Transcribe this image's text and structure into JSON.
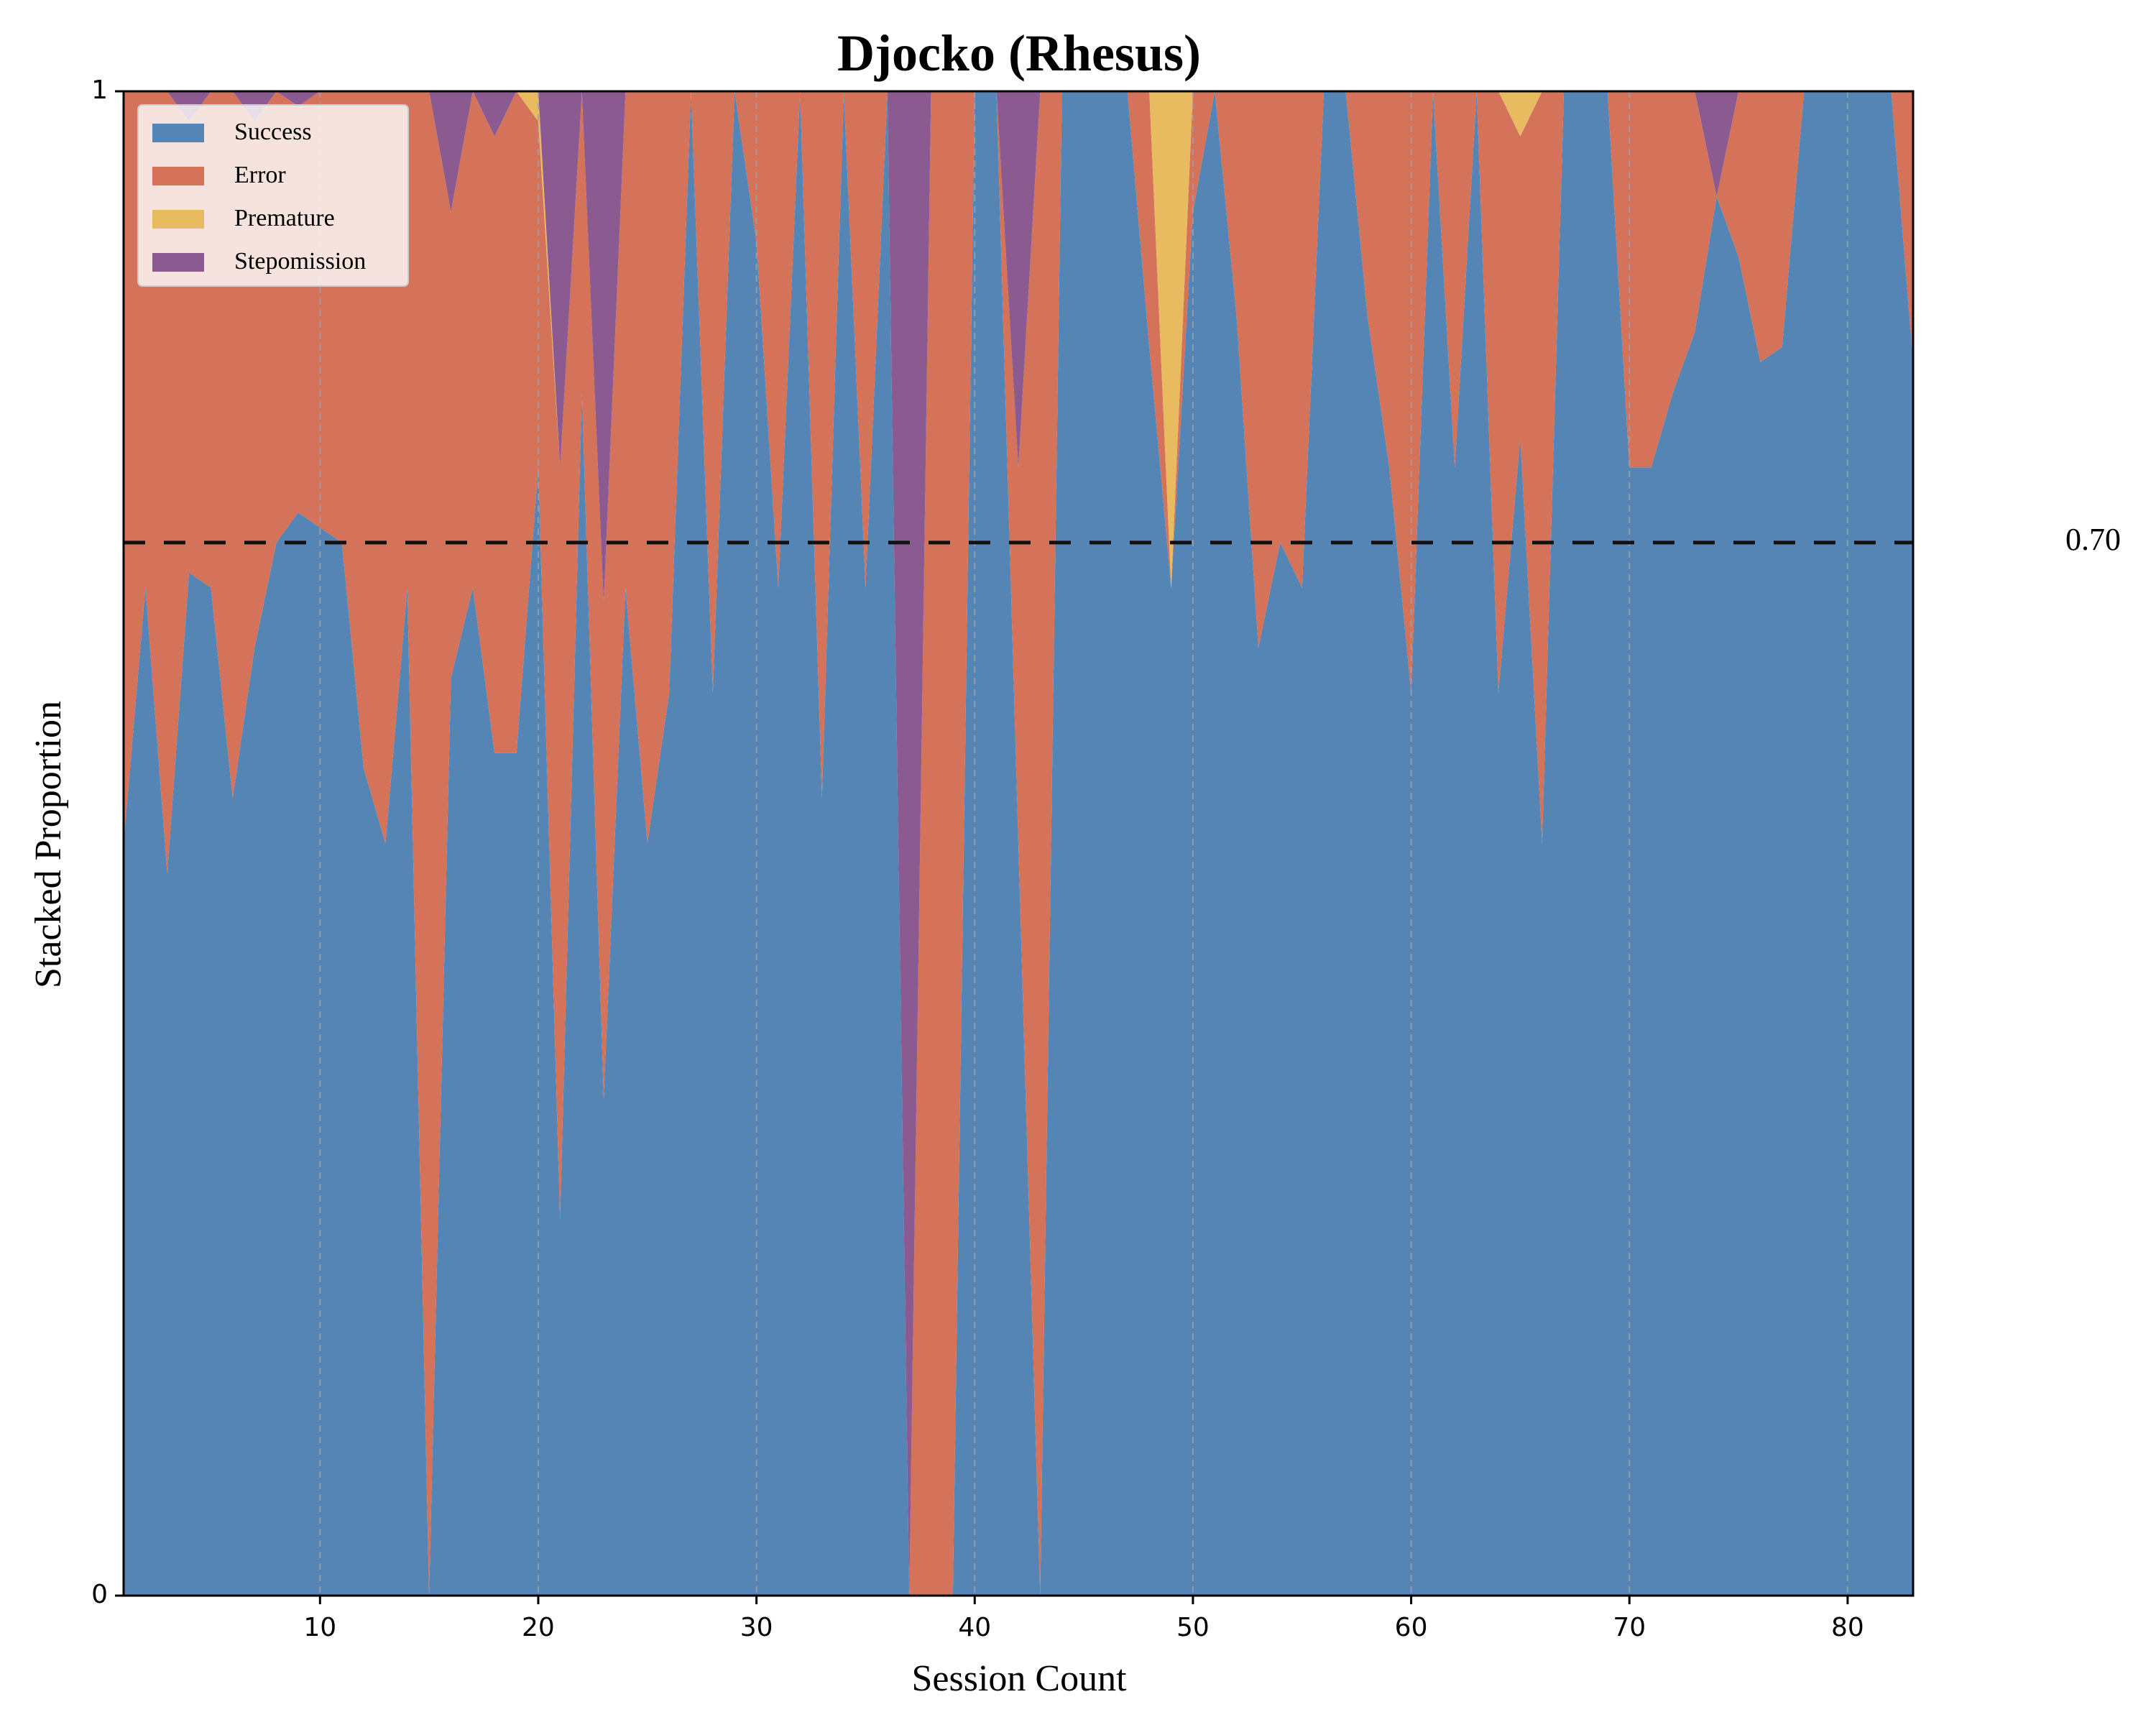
{
  "chart_data": {
    "type": "area",
    "stacked": true,
    "title": "Djocko (Rhesus)",
    "xlabel": "Session Count",
    "ylabel": "Stacked Proportion",
    "xlim": [
      1,
      83
    ],
    "ylim": [
      0,
      1
    ],
    "xticks": [
      10,
      20,
      30,
      40,
      50,
      60,
      70,
      80
    ],
    "yticks": [
      0,
      1
    ],
    "ytick_labels": [
      "0",
      "1"
    ],
    "grid": "x-dashed",
    "legend": "top-left",
    "threshold": {
      "value": 0.7,
      "label": "0.70"
    },
    "x": [
      1,
      2,
      3,
      4,
      5,
      6,
      7,
      8,
      9,
      10,
      11,
      12,
      13,
      14,
      15,
      16,
      17,
      18,
      19,
      20,
      21,
      22,
      23,
      24,
      25,
      26,
      27,
      28,
      29,
      30,
      31,
      32,
      33,
      34,
      35,
      36,
      37,
      38,
      39,
      40,
      41,
      42,
      43,
      44,
      45,
      46,
      47,
      48,
      49,
      50,
      51,
      52,
      53,
      54,
      55,
      56,
      57,
      58,
      59,
      60,
      61,
      62,
      63,
      64,
      65,
      66,
      67,
      68,
      69,
      70,
      71,
      72,
      73,
      74,
      75,
      76,
      77,
      78,
      79,
      80,
      81,
      82,
      83
    ],
    "series": [
      {
        "name": "Success",
        "color": "#5585b5",
        "values": [
          0.5,
          0.67,
          0.48,
          0.68,
          0.67,
          0.53,
          0.63,
          0.7,
          0.72,
          0.71,
          0.7,
          0.55,
          0.5,
          0.67,
          0.0,
          0.61,
          0.67,
          0.56,
          0.56,
          0.75,
          0.25,
          0.8,
          0.33,
          0.67,
          0.5,
          0.6,
          1.0,
          0.6,
          1.0,
          0.9,
          0.67,
          1.0,
          0.53,
          1.0,
          0.67,
          1.0,
          0.0,
          0.0,
          0.0,
          1.0,
          1.0,
          0.5,
          0.0,
          1.0,
          1.0,
          1.0,
          1.0,
          0.83,
          0.67,
          0.92,
          1.0,
          0.85,
          0.63,
          0.7,
          0.67,
          1.0,
          1.0,
          0.85,
          0.75,
          0.6,
          1.0,
          0.75,
          1.0,
          0.6,
          0.77,
          0.5,
          1.0,
          1.0,
          1.0,
          0.75,
          0.75,
          0.8,
          0.84,
          0.93,
          0.89,
          0.82,
          0.83,
          1.0,
          1.0,
          1.0,
          1.0,
          1.0,
          0.82
        ]
      },
      {
        "name": "Error",
        "color": "#d4735a",
        "values": [
          0.5,
          0.33,
          0.52,
          0.3,
          0.33,
          0.47,
          0.35,
          0.3,
          0.27,
          0.29,
          0.3,
          0.45,
          0.5,
          0.33,
          1.0,
          0.31,
          0.33,
          0.41,
          0.44,
          0.23,
          0.5,
          0.2,
          0.33,
          0.33,
          0.5,
          0.4,
          0.0,
          0.4,
          0.0,
          0.1,
          0.33,
          0.0,
          0.47,
          0.0,
          0.33,
          0.0,
          0.0,
          1.0,
          1.0,
          0.0,
          0.0,
          0.25,
          1.0,
          0.0,
          0.0,
          0.0,
          0.0,
          0.17,
          0.0,
          0.08,
          0.0,
          0.15,
          0.37,
          0.3,
          0.33,
          0.0,
          0.0,
          0.15,
          0.25,
          0.4,
          0.0,
          0.25,
          0.0,
          0.4,
          0.2,
          0.5,
          0.0,
          0.0,
          0.0,
          0.25,
          0.25,
          0.2,
          0.16,
          0.0,
          0.11,
          0.18,
          0.17,
          0.0,
          0.0,
          0.0,
          0.0,
          0.0,
          0.18
        ]
      },
      {
        "name": "Premature",
        "color": "#e8bb60",
        "values": [
          0,
          0,
          0,
          0,
          0,
          0,
          0,
          0,
          0,
          0,
          0,
          0,
          0,
          0,
          0,
          0,
          0,
          0,
          0,
          0.02,
          0,
          0,
          0,
          0,
          0,
          0,
          0,
          0,
          0,
          0,
          0,
          0,
          0,
          0,
          0,
          0,
          0,
          0,
          0,
          0,
          0,
          0,
          0,
          0,
          0,
          0,
          0,
          0,
          0.33,
          0,
          0,
          0,
          0,
          0,
          0,
          0,
          0,
          0,
          0,
          0,
          0,
          0,
          0,
          0,
          0.03,
          0,
          0,
          0,
          0,
          0,
          0,
          0,
          0,
          0,
          0,
          0,
          0,
          0,
          0,
          0,
          0,
          0,
          0
        ]
      },
      {
        "name": "Stepomission",
        "color": "#8b5a91",
        "values": [
          0,
          0,
          0,
          0.02,
          0,
          0,
          0.02,
          0,
          0.01,
          0,
          0,
          0,
          0,
          0,
          0,
          0.08,
          0,
          0.03,
          0,
          0,
          0.25,
          0,
          0.34,
          0,
          0,
          0,
          0,
          0,
          0,
          0,
          0,
          0,
          0,
          0,
          0,
          0,
          1.0,
          0,
          0,
          0,
          0,
          0.25,
          0,
          0,
          0,
          0,
          0,
          0,
          0,
          0,
          0,
          0,
          0,
          0,
          0,
          0,
          0,
          0,
          0,
          0,
          0,
          0,
          0,
          0,
          0,
          0,
          0,
          0,
          0,
          0,
          0,
          0,
          0,
          0.07,
          0,
          0,
          0,
          0,
          0,
          0,
          0,
          0,
          0
        ]
      }
    ]
  }
}
